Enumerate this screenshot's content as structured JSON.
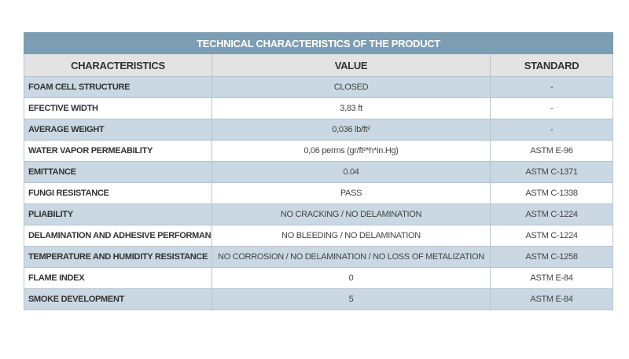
{
  "table": {
    "title": "TECHNICAL CHARACTERISTICS OF THE PRODUCT",
    "header": [
      "CHARACTERISTICS",
      "VALUE",
      "STANDARD"
    ],
    "rows": [
      [
        "FOAM CELL STRUCTURE",
        "CLOSED",
        "-"
      ],
      [
        "EFECTIVE WIDTH",
        "3,83 ft",
        "-"
      ],
      [
        "AVERAGE WEIGHT",
        "0,036 lb/ft²",
        "-"
      ],
      [
        "WATER VAPOR PERMEABILITY",
        "0,06 perms (gr/ft²*h*in.Hg)",
        "ASTM E-96"
      ],
      [
        "EMITTANCE",
        "0.04",
        "ASTM C-1371"
      ],
      [
        "FUNGI RESISTANCE",
        "PASS",
        "ASTM C-1338"
      ],
      [
        "PLIABILITY",
        "NO CRACKING / NO DELAMINATION",
        "ASTM C-1224"
      ],
      [
        "DELAMINATION AND ADHESIVE PERFORMANCE",
        "NO BLEEDING / NO DELAMINATION",
        "ASTM C-1224"
      ],
      [
        "TEMPERATURE AND HUMIDITY RESISTANCE",
        "NO CORROSION / NO DELAMINATION / NO LOSS OF METALIZATION",
        "ASTM C-1258"
      ],
      [
        "FLAME INDEX",
        "0",
        "ASTM E-84"
      ],
      [
        "SMOKE DEVELOPMENT",
        "5",
        "ASTM E-84"
      ]
    ]
  }
}
